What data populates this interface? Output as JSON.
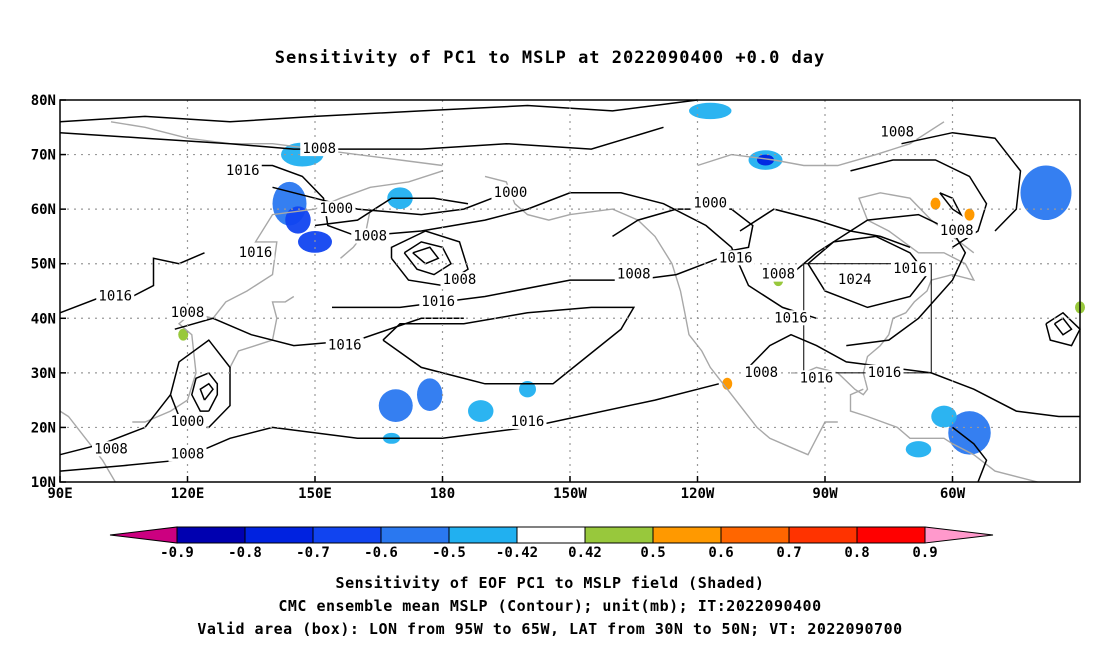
{
  "title": "Sensitivity of PC1 to MSLP at 2022090400 +0.0 day",
  "map": {
    "lat_ticks": [
      "80N",
      "70N",
      "60N",
      "50N",
      "40N",
      "30N",
      "20N",
      "10N"
    ],
    "lon_ticks": [
      "90E",
      "120E",
      "150E",
      "180",
      "150W",
      "120W",
      "90W",
      "60W"
    ],
    "lon_range": [
      90,
      330
    ],
    "lat_range": [
      10,
      80
    ],
    "gridlines": "dotted",
    "valid_box": {
      "lon": [
        265,
        295
      ],
      "lat": [
        30,
        50
      ]
    },
    "contour_labels": [
      {
        "text": "1008",
        "lon": 151,
        "lat": 71
      },
      {
        "text": "1016",
        "lon": 133,
        "lat": 67
      },
      {
        "text": "1000",
        "lon": 155,
        "lat": 60
      },
      {
        "text": "1008",
        "lon": 163,
        "lat": 55
      },
      {
        "text": "1016",
        "lon": 136,
        "lat": 52
      },
      {
        "text": "1016",
        "lon": 103,
        "lat": 44
      },
      {
        "text": "1008",
        "lon": 120,
        "lat": 41
      },
      {
        "text": "1016",
        "lon": 157,
        "lat": 35
      },
      {
        "text": "1000",
        "lon": 120,
        "lat": 21
      },
      {
        "text": "1008",
        "lon": 102,
        "lat": 16
      },
      {
        "text": "1008",
        "lon": 120,
        "lat": 15
      },
      {
        "text": "1000",
        "lon": 196,
        "lat": 63
      },
      {
        "text": "1008",
        "lon": 184,
        "lat": 47
      },
      {
        "text": "1016",
        "lon": 179,
        "lat": 43
      },
      {
        "text": "1008",
        "lon": 225,
        "lat": 48
      },
      {
        "text": "1016",
        "lon": 249,
        "lat": 51
      },
      {
        "text": "1016",
        "lon": 200,
        "lat": 21
      },
      {
        "text": "1000",
        "lon": 243,
        "lat": 61
      },
      {
        "text": "1008",
        "lon": 259,
        "lat": 48
      },
      {
        "text": "1016",
        "lon": 262,
        "lat": 40
      },
      {
        "text": "1008",
        "lon": 255,
        "lat": 30
      },
      {
        "text": "1016",
        "lon": 268,
        "lat": 29
      },
      {
        "text": "1024",
        "lon": 277,
        "lat": 47
      },
      {
        "text": "1016",
        "lon": 290,
        "lat": 49
      },
      {
        "text": "1016",
        "lon": 284,
        "lat": 30
      },
      {
        "text": "1008",
        "lon": 287,
        "lat": 74
      },
      {
        "text": "1008",
        "lon": 301,
        "lat": 56
      }
    ]
  },
  "colorbar": {
    "labels": [
      "-0.9",
      "-0.8",
      "-0.7",
      "-0.6",
      "-0.5",
      "-0.42",
      "0.42",
      "0.5",
      "0.6",
      "0.7",
      "0.8",
      "0.9"
    ],
    "colors": [
      "#0000b0",
      "#0022e0",
      "#1144f0",
      "#2a78f0",
      "#21b0f0",
      "#ffffff",
      "#98c83c",
      "#ff9900",
      "#ff6600",
      "#ff3300",
      "#ff0000"
    ],
    "low_end_color": "#cc0080",
    "high_end_color": "#ff99cc"
  },
  "captions": [
    "Sensitivity of EOF PC1 to MSLP field (Shaded)",
    "CMC ensemble mean MSLP (Contour); unit(mb); IT:2022090400",
    "Valid area (box): LON from 95W to 65W, LAT from 30N to 50N; VT: 2022090700"
  ]
}
